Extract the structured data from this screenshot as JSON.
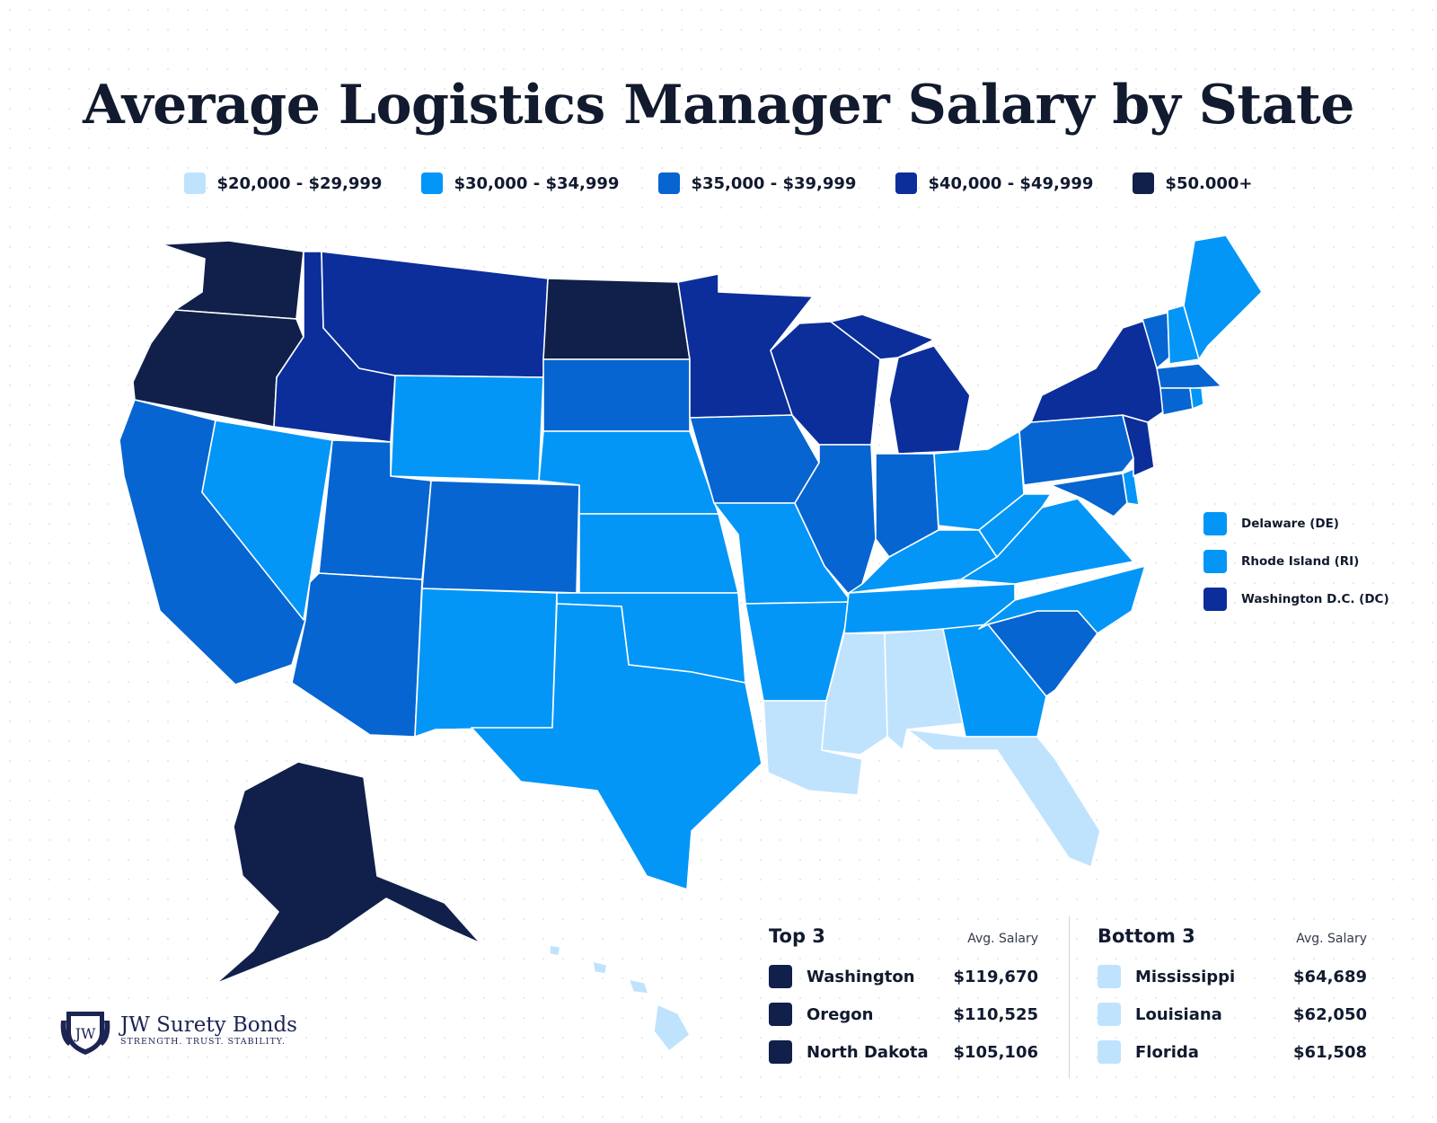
{
  "title": "Average Logistics Manager Salary by State",
  "legend": [
    {
      "label": "$20,000 - $29,999",
      "color": "#bfe3fd"
    },
    {
      "label": "$30,000 - $34,999",
      "color": "#0396f7"
    },
    {
      "label": "$35,000 - $39,999",
      "color": "#0665d0"
    },
    {
      "label": "$40,000 - $49,999",
      "color": "#0b2e9b"
    },
    {
      "label": "$50.000+",
      "color": "#10204a"
    }
  ],
  "small_states": [
    {
      "label": "Delaware (DE)",
      "color": "#0396f7"
    },
    {
      "label": "Rhode Island (RI)",
      "color": "#0396f7"
    },
    {
      "label": "Washington D.C. (DC)",
      "color": "#0b2e9b"
    }
  ],
  "top3": {
    "heading": "Top 3",
    "subheading": "Avg. Salary",
    "rows": [
      {
        "state": "Washington",
        "salary": "$119,670",
        "color": "#10204a"
      },
      {
        "state": "Oregon",
        "salary": "$110,525",
        "color": "#10204a"
      },
      {
        "state": "North Dakota",
        "salary": "$105,106",
        "color": "#10204a"
      }
    ]
  },
  "bottom3": {
    "heading": "Bottom 3",
    "subheading": "Avg. Salary",
    "rows": [
      {
        "state": "Mississippi",
        "salary": "$64,689",
        "color": "#bfe3fd"
      },
      {
        "state": "Louisiana",
        "salary": "$62,050",
        "color": "#bfe3fd"
      },
      {
        "state": "Florida",
        "salary": "$61,508",
        "color": "#bfe3fd"
      }
    ]
  },
  "brand": {
    "monogram": "JW",
    "name": "JW Surety Bonds",
    "tagline": "STRENGTH. TRUST. STABILITY."
  },
  "state_colors": {
    "WA": "#10204a",
    "OR": "#10204a",
    "ND": "#10204a",
    "AK": "#10204a",
    "ID": "#0b2e9b",
    "MT": "#0b2e9b",
    "MN": "#0b2e9b",
    "WI": "#0b2e9b",
    "MI": "#0b2e9b",
    "NY": "#0b2e9b",
    "NJ": "#0b2e9b",
    "CA": "#0665d0",
    "UT": "#0665d0",
    "CO": "#0665d0",
    "AZ": "#0665d0",
    "SD": "#0665d0",
    "IA": "#0665d0",
    "IL": "#0665d0",
    "IN": "#0665d0",
    "PA": "#0665d0",
    "SC": "#0665d0",
    "VT": "#0665d0",
    "MA": "#0665d0",
    "CT": "#0665d0",
    "MD": "#0665d0",
    "NV": "#0396f7",
    "WY": "#0396f7",
    "NE": "#0396f7",
    "KS": "#0396f7",
    "NM": "#0396f7",
    "OK": "#0396f7",
    "TX": "#0396f7",
    "MO": "#0396f7",
    "AR": "#0396f7",
    "TN": "#0396f7",
    "KY": "#0396f7",
    "OH": "#0396f7",
    "WV": "#0396f7",
    "VA": "#0396f7",
    "NC": "#0396f7",
    "GA": "#0396f7",
    "ME": "#0396f7",
    "NH": "#0396f7",
    "RI": "#0396f7",
    "DE": "#0396f7",
    "MS": "#bfe3fd",
    "AL": "#bfe3fd",
    "LA": "#bfe3fd",
    "FL": "#bfe3fd",
    "HI": "#bfe3fd"
  }
}
